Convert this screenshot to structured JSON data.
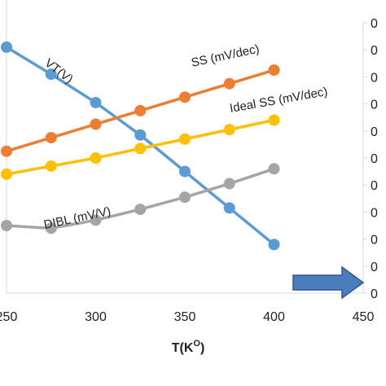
{
  "chart_data": {
    "type": "line",
    "xlabel": "T(K",
    "xlabel_sup": "O",
    "xlabel_close": ")",
    "xlim": [
      250,
      450
    ],
    "xticks": [
      "250",
      "300",
      "350",
      "400",
      "450"
    ],
    "xtick_values": [
      250,
      300,
      350,
      400,
      450
    ],
    "right_ticks": [
      "0",
      "0",
      "0",
      "0",
      "0",
      "0",
      "0",
      "0",
      "0",
      "0",
      "0"
    ],
    "grid": false,
    "series": [
      {
        "name": "VT(V)",
        "color": "#5B9BD5",
        "x": [
          250,
          275,
          300,
          325,
          350,
          375,
          400
        ],
        "y": [
          91.0,
          81.0,
          70.5,
          58.5,
          45.0,
          31.5,
          18.0
        ]
      },
      {
        "name": "SS (mV/dec)",
        "color": "#ED7D31",
        "x": [
          250,
          275,
          300,
          325,
          350,
          375,
          400
        ],
        "y": [
          52.5,
          57.5,
          62.5,
          67.5,
          72.5,
          77.5,
          82.5
        ]
      },
      {
        "name": "Ideal SS (mV/dec)",
        "color": "#FFC000",
        "x": [
          250,
          275,
          300,
          325,
          350,
          375,
          400
        ],
        "y": [
          44.0,
          47.0,
          50.0,
          53.5,
          57.0,
          60.5,
          64.0
        ]
      },
      {
        "name": "DIBL (mV/V)",
        "color": "#A5A5A5",
        "x": [
          250,
          275,
          300,
          325,
          350,
          375,
          400
        ],
        "y": [
          25.0,
          24.0,
          27.0,
          31.0,
          35.5,
          40.5,
          46.0
        ]
      }
    ],
    "annotations": [
      {
        "text": "VT(V)",
        "series": 0
      },
      {
        "text": "SS (mV/dec)",
        "series": 1
      },
      {
        "text": "Ideal SS (mV/dec)",
        "series": 2
      },
      {
        "text": "DIBL (mV/V)",
        "series": 3
      }
    ],
    "arrow": {
      "color": "#4A7EBB",
      "direction": "right"
    }
  }
}
